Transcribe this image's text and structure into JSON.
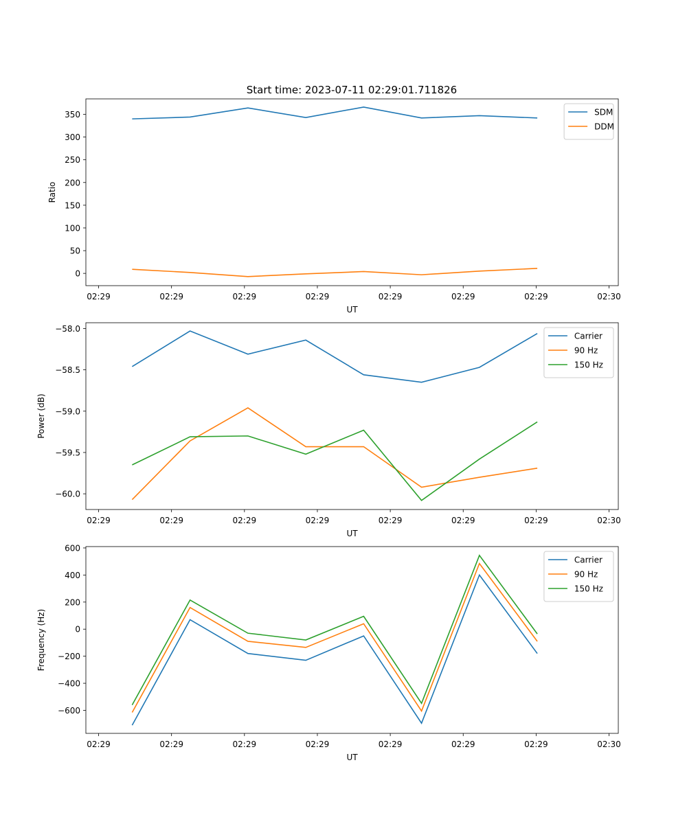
{
  "title": "Start time: 2023-07-11 02:29:01.711826",
  "chart_data": [
    {
      "type": "line",
      "ylabel": "Ratio",
      "xlabel": "UT",
      "x_tick_labels": [
        "02:29",
        "02:29",
        "02:29",
        "02:29",
        "02:29",
        "02:29",
        "02:29",
        "02:30"
      ],
      "x": [
        1,
        2,
        3,
        4,
        5,
        6,
        7,
        8
      ],
      "xlim": [
        0.2,
        9.4
      ],
      "ylim": [
        -27,
        384
      ],
      "yticks": [
        0,
        50,
        100,
        150,
        200,
        250,
        300,
        350
      ],
      "series": [
        {
          "name": "SDM",
          "color": "#1f77b4",
          "values": [
            340,
            344,
            364,
            343,
            366,
            342,
            347,
            342
          ]
        },
        {
          "name": "DDM",
          "color": "#ff7f0e",
          "values": [
            9,
            2,
            -7,
            -1,
            4,
            -3,
            5,
            11
          ]
        }
      ]
    },
    {
      "type": "line",
      "ylabel": "Power (dB)",
      "xlabel": "UT",
      "x_tick_labels": [
        "02:29",
        "02:29",
        "02:29",
        "02:29",
        "02:29",
        "02:29",
        "02:29",
        "02:30"
      ],
      "x": [
        1,
        2,
        3,
        4,
        5,
        6,
        7,
        8
      ],
      "xlim": [
        0.2,
        9.4
      ],
      "ylim": [
        -60.19,
        -57.93
      ],
      "yticks": [
        -60.0,
        -59.5,
        -59.0,
        -58.5,
        -58.0
      ],
      "ytick_labels": [
        "−60.0",
        "−59.5",
        "−59.0",
        "−58.5",
        "−58.0"
      ],
      "series": [
        {
          "name": "Carrier",
          "color": "#1f77b4",
          "values": [
            -58.46,
            -58.03,
            -58.31,
            -58.14,
            -58.56,
            -58.65,
            -58.47,
            -58.06
          ]
        },
        {
          "name": "90 Hz",
          "color": "#ff7f0e",
          "values": [
            -60.07,
            -59.36,
            -58.96,
            -59.43,
            -59.43,
            -59.92,
            -59.8,
            -59.69
          ]
        },
        {
          "name": "150 Hz",
          "color": "#2ca02c",
          "values": [
            -59.65,
            -59.31,
            -59.3,
            -59.52,
            -59.23,
            -60.08,
            -59.58,
            -59.13
          ]
        }
      ]
    },
    {
      "type": "line",
      "ylabel": "Frequency (Hz)",
      "xlabel": "UT",
      "x_tick_labels": [
        "02:29",
        "02:29",
        "02:29",
        "02:29",
        "02:29",
        "02:29",
        "02:29",
        "02:30"
      ],
      "x": [
        1,
        2,
        3,
        4,
        5,
        6,
        7,
        8
      ],
      "xlim": [
        0.2,
        9.4
      ],
      "ylim": [
        -770,
        610
      ],
      "yticks": [
        -600,
        -400,
        -200,
        0,
        200,
        400,
        600
      ],
      "ytick_labels": [
        "−600",
        "−400",
        "−200",
        "0",
        "200",
        "400",
        "600"
      ],
      "series": [
        {
          "name": "Carrier",
          "color": "#1f77b4",
          "values": [
            -710,
            70,
            -180,
            -230,
            -50,
            -695,
            400,
            -180
          ]
        },
        {
          "name": "90 Hz",
          "color": "#ff7f0e",
          "values": [
            -615,
            160,
            -90,
            -135,
            40,
            -605,
            485,
            -90
          ]
        },
        {
          "name": "150 Hz",
          "color": "#2ca02c",
          "values": [
            -560,
            215,
            -30,
            -80,
            95,
            -548,
            545,
            -35
          ]
        }
      ]
    }
  ]
}
